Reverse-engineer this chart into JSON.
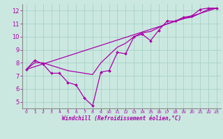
{
  "xlabel": "Windchill (Refroidissement éolien,°C)",
  "bg_color": "#cbe8e0",
  "grid_color": "#aad4c8",
  "line_color": "#aa00aa",
  "spine_color": "#888888",
  "xlim": [
    -0.5,
    23.5
  ],
  "ylim": [
    4.5,
    12.5
  ],
  "xticks": [
    0,
    1,
    2,
    3,
    4,
    5,
    6,
    7,
    8,
    9,
    10,
    11,
    12,
    13,
    14,
    15,
    16,
    17,
    18,
    19,
    20,
    21,
    22,
    23
  ],
  "yticks": [
    5,
    6,
    7,
    8,
    9,
    10,
    11,
    12
  ],
  "line1_x": [
    0,
    1,
    2,
    3,
    4,
    5,
    6,
    7,
    8,
    9,
    10,
    11,
    12,
    13,
    14,
    15,
    16,
    17,
    18,
    19,
    20,
    21,
    22,
    23
  ],
  "line1_y": [
    7.5,
    8.2,
    7.9,
    7.2,
    7.2,
    6.5,
    6.3,
    5.3,
    4.7,
    7.3,
    7.4,
    8.8,
    8.7,
    10.0,
    10.2,
    9.7,
    10.5,
    11.2,
    11.2,
    11.5,
    11.6,
    12.1,
    12.2,
    12.2
  ],
  "line2_x": [
    0,
    1,
    2,
    3,
    4,
    5,
    6,
    7,
    8,
    9,
    10,
    11,
    12,
    13,
    14,
    15,
    16,
    17,
    18,
    19,
    20,
    21,
    22,
    23
  ],
  "line2_y": [
    7.5,
    8.0,
    8.0,
    7.8,
    7.6,
    7.4,
    7.3,
    7.2,
    7.1,
    8.0,
    8.6,
    9.2,
    9.5,
    10.0,
    10.3,
    10.4,
    10.7,
    11.0,
    11.2,
    11.4,
    11.5,
    11.8,
    12.1,
    12.2
  ],
  "line3_x": [
    0,
    23
  ],
  "line3_y": [
    7.5,
    12.2
  ]
}
